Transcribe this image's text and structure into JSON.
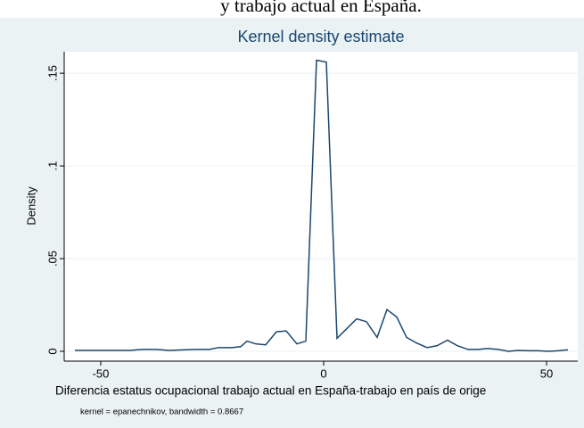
{
  "caption": "y trabajo actual en España.",
  "chart_data": {
    "type": "line",
    "title": "Kernel density estimate",
    "xlabel": "Diferencia estatus ocupacional trabajo actual en España-trabajo en país de orige",
    "ylabel": "Density",
    "note": "kernel = epanechnikov, bandwidth = 0.8667",
    "x": [
      -55.8,
      -52.6,
      -49.6,
      -46.6,
      -43.6,
      -40.6,
      -37.6,
      -34.6,
      -31.6,
      -28.6,
      -25.6,
      -23.6,
      -20.6,
      -18.6,
      -17.2,
      -15.2,
      -13,
      -10.6,
      -8.4,
      -6,
      -4,
      -1.6,
      0.6,
      3,
      7.4,
      9.6,
      12,
      14.2,
      16.4,
      18.6,
      20.8,
      23.2,
      25.4,
      27.8,
      30,
      32.4,
      34.6,
      36.8,
      39.2,
      41.4,
      43.6,
      46,
      48.2,
      50.4,
      52.6,
      54.8
    ],
    "series": [
      {
        "color": "#1a476f",
        "values": [
          0.0005,
          0.0005,
          0.0005,
          0.0005,
          0.0005,
          0.001,
          0.001,
          0.0005,
          0.0008,
          0.001,
          0.001,
          0.002,
          0.002,
          0.0025,
          0.0055,
          0.004,
          0.0035,
          0.0105,
          0.011,
          0.004,
          0.0055,
          0.157,
          0.156,
          0.007,
          0.0175,
          0.016,
          0.0075,
          0.0225,
          0.0185,
          0.0075,
          0.0045,
          0.002,
          0.003,
          0.006,
          0.003,
          0.001,
          0.001,
          0.0015,
          0.001,
          0,
          0.0005,
          0.0003,
          0.0003,
          0,
          0.0003,
          0.0008
        ]
      }
    ],
    "xlim": [
      -58.2,
      57
    ],
    "ylim": [
      -0.0053,
      0.1616
    ],
    "xticks": [
      -50,
      0,
      50
    ],
    "yticks": [
      0,
      {
        "value": 0.05,
        "label": ".05"
      },
      {
        "value": 0.1,
        "label": ".1"
      },
      {
        "value": 0.15,
        "label": ".15"
      }
    ],
    "grid": true
  }
}
